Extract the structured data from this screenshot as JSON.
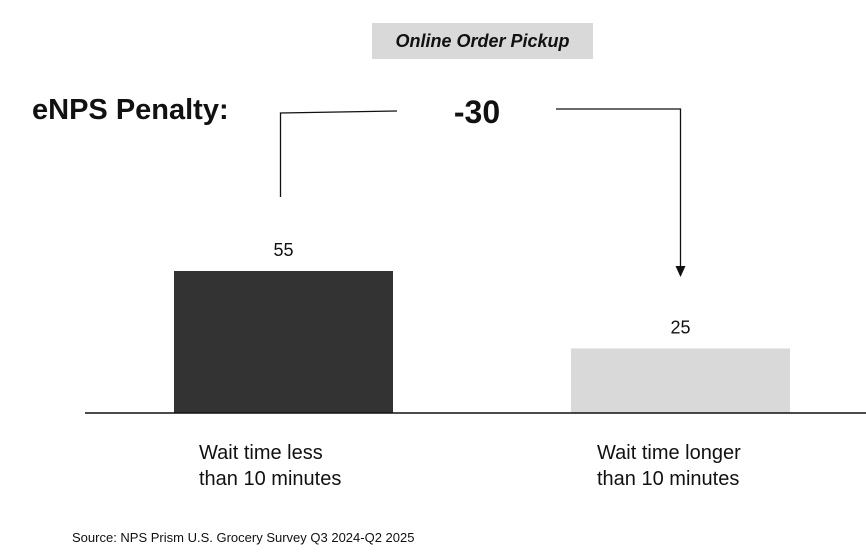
{
  "header": {
    "badge": "Online Order Pickup",
    "penalty_label": "eNPS Penalty:",
    "penalty_value": "-30"
  },
  "footer": {
    "source": "Source: NPS Prism U.S. Grocery Survey Q3 2024-Q2 2025"
  },
  "colors": {
    "bar_1": "#333333",
    "bar_2": "#d9d9d9",
    "badge_bg": "#d9d9d9",
    "axis": "#111111"
  },
  "chart_data": {
    "type": "bar",
    "categories": [
      "Wait time less\nthan 10 minutes",
      "Wait time longer\nthan 10 minutes"
    ],
    "values": [
      55,
      25
    ],
    "data_labels": [
      "55",
      "25"
    ],
    "ylim": [
      0,
      55
    ],
    "difference": -30,
    "title": "Online Order Pickup",
    "xlabel": "",
    "ylabel": "",
    "grid": false,
    "legend": "none"
  }
}
